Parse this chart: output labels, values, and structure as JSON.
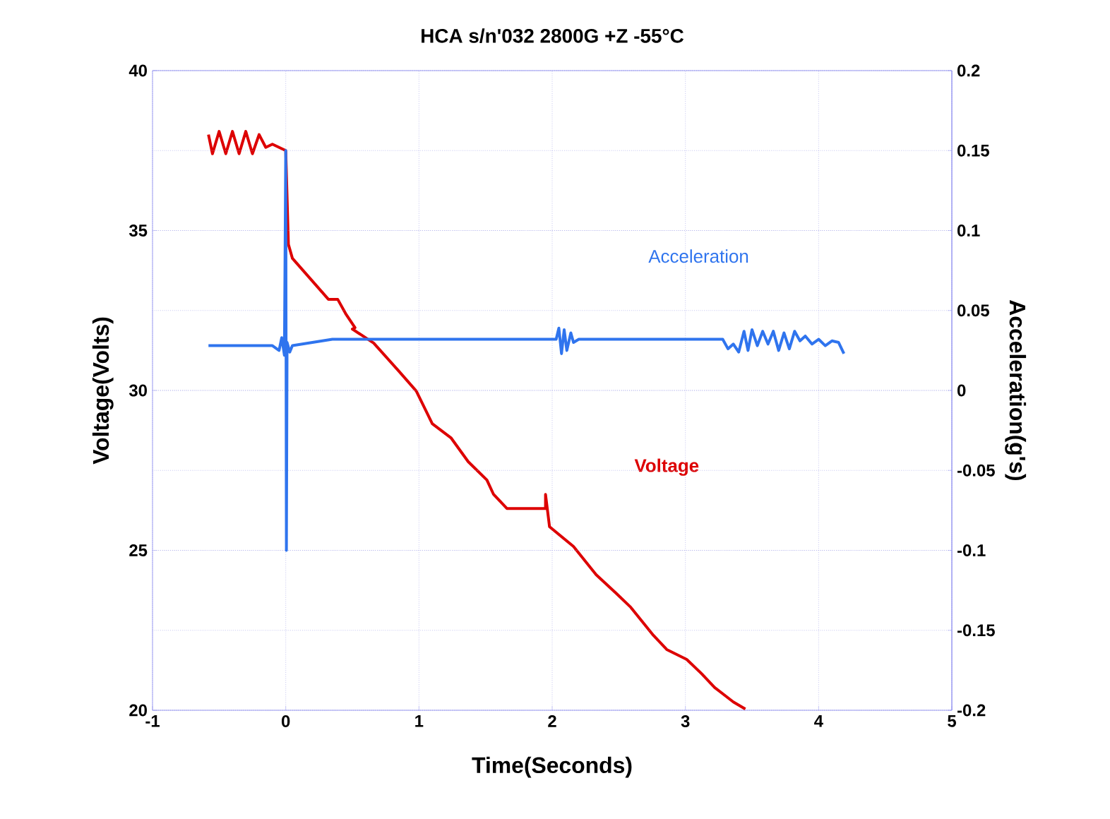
{
  "chart_data": {
    "type": "line",
    "title": "HCA s/n'032 2800G +Z -55°C",
    "xlabel": "Time(Seconds)",
    "ylabel": "Voltage(Volts)",
    "y2label": "Acceleration(g's)",
    "xlim": [
      -1,
      5
    ],
    "xticks": [
      -1,
      0,
      1,
      2,
      3,
      4,
      5
    ],
    "ylim": [
      20,
      40
    ],
    "yticks": [
      20,
      25,
      30,
      35,
      40
    ],
    "y2lim": [
      -0.2,
      0.2
    ],
    "y2ticks": [
      -0.2,
      -0.15,
      -0.1,
      -0.05,
      0,
      0.05,
      0.1,
      0.15,
      0.2
    ],
    "grid": true,
    "line_style": "solid",
    "series": [
      {
        "name": "Voltage",
        "color": "#dd0000",
        "x": [
          -0.58,
          -0.55,
          -0.5,
          -0.45,
          -0.4,
          -0.35,
          -0.3,
          -0.25,
          -0.2,
          -0.15,
          -0.1,
          0,
          0.02,
          0.05,
          0.32,
          0.39,
          0.45,
          0.52,
          0.5,
          0.66,
          0.85,
          0.98,
          1.1,
          1.24,
          1.37,
          1.51,
          1.56,
          1.66,
          1.95,
          1.95,
          1.98,
          2.16,
          2.33,
          2.48,
          2.59,
          2.76,
          2.86,
          3.01,
          3.12,
          3.22,
          3.36,
          3.45
        ],
        "values": [
          38.0,
          37.4,
          38.1,
          37.4,
          38.1,
          37.4,
          38.1,
          37.4,
          38.0,
          37.6,
          37.7,
          37.5,
          34.57,
          34.13,
          32.85,
          32.85,
          32.4,
          31.96,
          31.92,
          31.48,
          30.6,
          29.98,
          28.96,
          28.52,
          27.77,
          27.2,
          26.75,
          26.31,
          26.31,
          26.75,
          25.74,
          25.12,
          24.24,
          23.66,
          23.22,
          22.34,
          21.9,
          21.59,
          21.15,
          20.71,
          20.26,
          20.04
        ]
      },
      {
        "name": "Acceleration",
        "color": "#2f74ee",
        "axis": "y2",
        "x": [
          -0.58,
          -0.1,
          -0.05,
          -0.03,
          -0.01,
          0,
          0.005,
          0.01,
          0.03,
          0.05,
          0.2,
          0.35,
          1.0,
          1.95,
          2.03,
          2.05,
          2.07,
          2.09,
          2.11,
          2.14,
          2.16,
          2.2,
          2.25,
          3.28,
          3.32,
          3.36,
          3.4,
          3.44,
          3.47,
          3.5,
          3.54,
          3.58,
          3.62,
          3.66,
          3.7,
          3.74,
          3.78,
          3.82,
          3.86,
          3.9,
          3.95,
          4.0,
          4.05,
          4.1,
          4.15,
          4.19
        ],
        "values": [
          0.028,
          0.028,
          0.025,
          0.033,
          0.022,
          0.15,
          -0.1,
          0.03,
          0.024,
          0.028,
          0.03,
          0.032,
          0.032,
          0.032,
          0.032,
          0.039,
          0.023,
          0.038,
          0.025,
          0.036,
          0.03,
          0.032,
          0.032,
          0.032,
          0.026,
          0.029,
          0.024,
          0.037,
          0.025,
          0.038,
          0.028,
          0.037,
          0.029,
          0.037,
          0.025,
          0.036,
          0.026,
          0.037,
          0.031,
          0.034,
          0.029,
          0.032,
          0.028,
          0.031,
          0.03,
          0.023
        ]
      }
    ]
  }
}
